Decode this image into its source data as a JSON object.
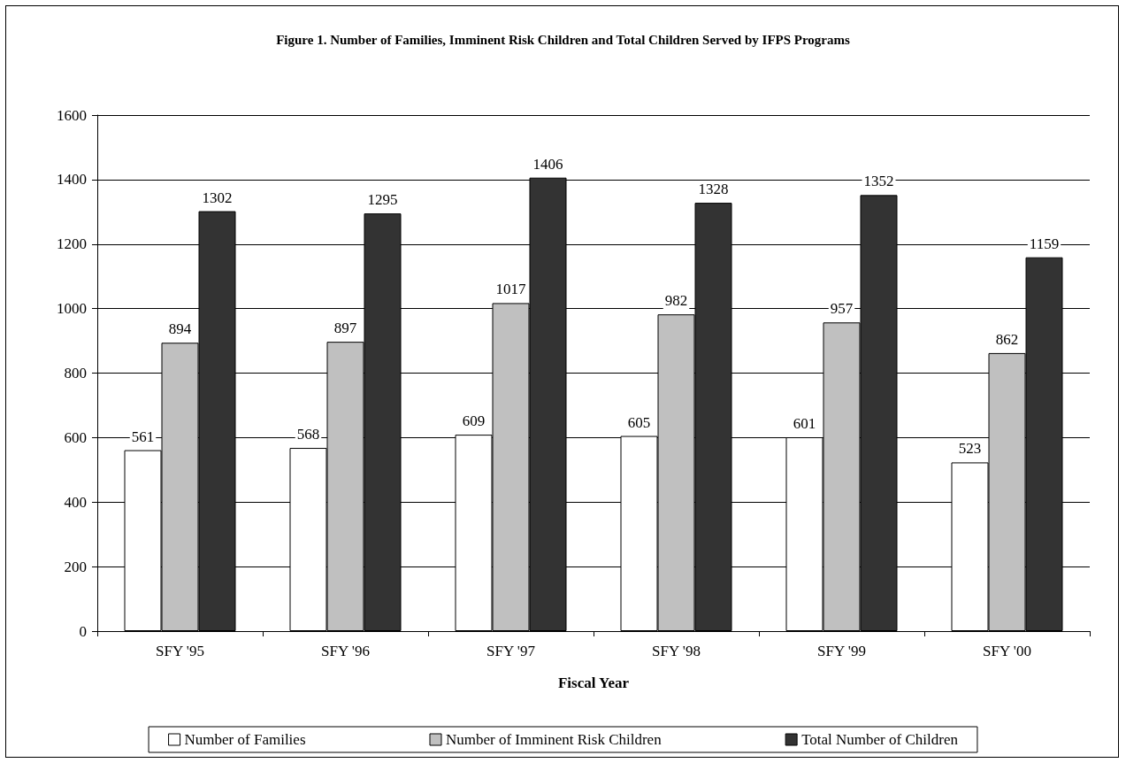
{
  "chart_data": {
    "type": "bar",
    "title": "Figure 1. Number of Families, Imminent Risk Children and Total Children Served by IFPS Programs",
    "xlabel": "Fiscal Year",
    "categories": [
      "SFY '95",
      "SFY '96",
      "SFY '97",
      "SFY '98",
      "SFY '99",
      "SFY '00"
    ],
    "series": [
      {
        "name": "Number of Families",
        "color": "#ffffff",
        "values": [
          561,
          568,
          609,
          605,
          601,
          523
        ]
      },
      {
        "name": "Number of Imminent Risk Children",
        "color": "#c0c0c0",
        "values": [
          894,
          897,
          1017,
          982,
          957,
          862
        ]
      },
      {
        "name": "Total Number of Children",
        "color": "#333333",
        "values": [
          1302,
          1295,
          1406,
          1328,
          1352,
          1159
        ]
      }
    ],
    "ylim": [
      0,
      1600
    ],
    "yticks": [
      0,
      200,
      400,
      600,
      800,
      1000,
      1200,
      1400,
      1600
    ],
    "grid": "y",
    "legend": "bottom",
    "data_labels": true
  }
}
